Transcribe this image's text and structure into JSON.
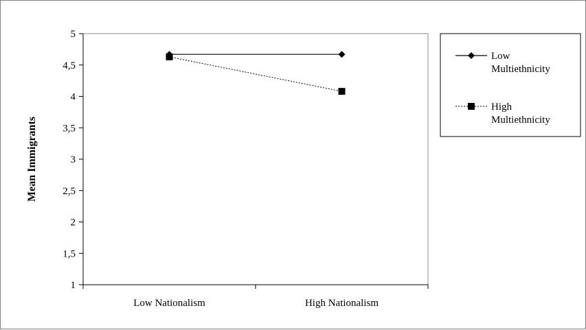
{
  "chart_data": {
    "type": "line",
    "title": "",
    "xlabel": "",
    "ylabel": "Mean Immigrants",
    "categories": [
      "Low Nationalism",
      "High Nationalism"
    ],
    "ylim": [
      1,
      5
    ],
    "yticks": [
      "1",
      "1,5",
      "2",
      "2,5",
      "3",
      "3,5",
      "4",
      "4,5",
      "5"
    ],
    "ytick_values": [
      1,
      1.5,
      2,
      2.5,
      3,
      3.5,
      4,
      4.5,
      5
    ],
    "grid": false,
    "legend_position": "right",
    "series": [
      {
        "name_lines": [
          "Low",
          "Multiethnicity"
        ],
        "values": [
          4.67,
          4.67
        ],
        "marker": "diamond",
        "line": "solid",
        "color": "#000000"
      },
      {
        "name_lines": [
          "High",
          "Multiethnicity"
        ],
        "values": [
          4.63,
          4.08
        ],
        "marker": "square",
        "line": "dashed",
        "color": "#000000"
      }
    ]
  }
}
